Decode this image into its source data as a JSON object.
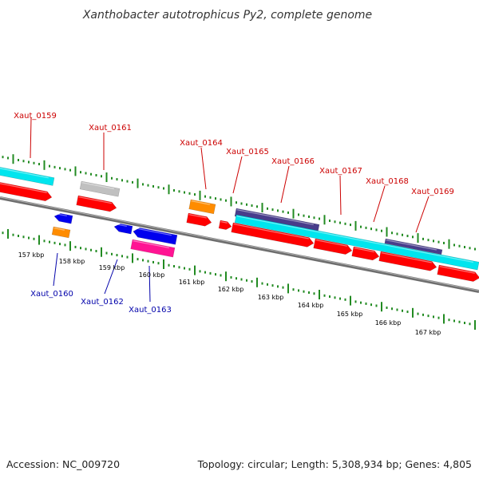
{
  "title": "Xanthobacter autotrophicus Py2, complete genome",
  "footer": {
    "accession": "Accession: NC_009720",
    "summary": "Topology: circular; Length: 5,308,934 bp; Genes: 4,805"
  },
  "colors": {
    "forward_label": "#cc0000",
    "reverse_label": "#0000aa",
    "cds": "#ff0000",
    "cds_reverse": "#0000ee",
    "trna": "#ff8c00",
    "rrna": "#ff1493",
    "pseudo": "#c0c0c0",
    "feature_cyan": "#00e5ee",
    "feature_purple": "#483d8b",
    "backbone": "#808080",
    "ticks": "#228b22"
  },
  "kbp_labels": [
    "157 kbp",
    "158 kbp",
    "159 kbp",
    "160 kbp",
    "161 kbp",
    "162 kbp",
    "163 kbp",
    "164 kbp",
    "165 kbp",
    "166 kbp",
    "167 kbp"
  ],
  "gene_labels": {
    "forward": [
      "Xaut_0159",
      "Xaut_0161",
      "Xaut_0164",
      "Xaut_0165",
      "Xaut_0166",
      "Xaut_0167",
      "Xaut_0168",
      "Xaut_0169"
    ],
    "reverse": [
      "Xaut_0160",
      "Xaut_0162",
      "Xaut_0163"
    ]
  }
}
